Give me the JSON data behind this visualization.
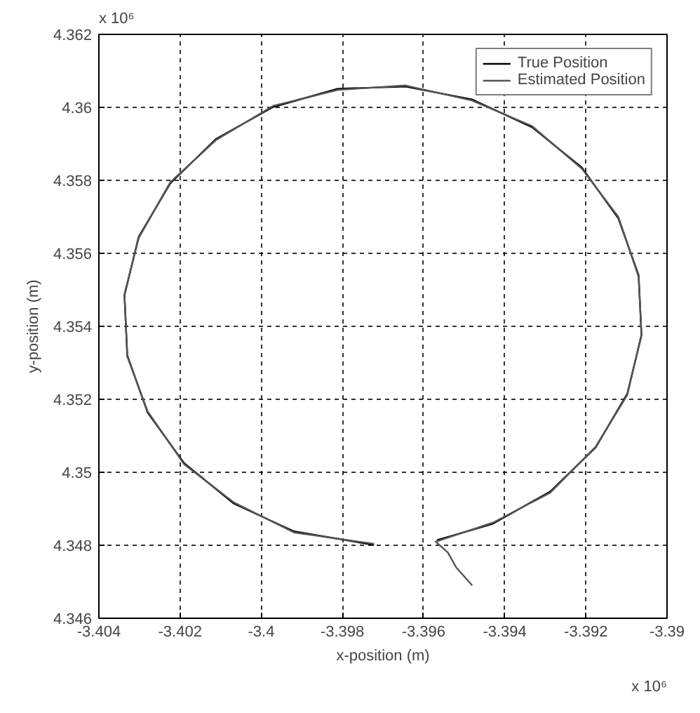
{
  "chart_data": {
    "type": "line",
    "xlabel": "x-position (m)",
    "ylabel": "y-position (m)",
    "annotations": [
      "x 10⁶",
      "x 10⁶"
    ],
    "xlim": [
      -3.404,
      -3.39
    ],
    "ylim": [
      4.346,
      4.362
    ],
    "xticks": [
      -3.404,
      -3.402,
      -3.4,
      -3.398,
      -3.396,
      -3.394,
      -3.392,
      -3.39
    ],
    "yticks": [
      4.346,
      4.348,
      4.35,
      4.352,
      4.354,
      4.356,
      4.358,
      4.36,
      4.362
    ],
    "grid": true,
    "legend": "top right",
    "line_style": "solid",
    "series": [
      {
        "name": "True Position",
        "color": "#000000",
        "x": [
          -3.39567,
          -3.39429,
          -3.39288,
          -3.39176,
          -3.39098,
          -3.39063,
          -3.3907,
          -3.3912,
          -3.3921,
          -3.39333,
          -3.39481,
          -3.39644,
          -3.39811,
          -3.39971,
          -3.40112,
          -3.40224,
          -3.40302,
          -3.40337,
          -3.4033,
          -3.4028,
          -3.4019,
          -3.40067,
          -3.39919,
          -3.39722
        ],
        "values": [
          4.34814,
          4.34859,
          4.34947,
          4.35068,
          4.35215,
          4.35375,
          4.3554,
          4.35696,
          4.35835,
          4.35946,
          4.36022,
          4.36057,
          4.36051,
          4.36001,
          4.35913,
          4.35792,
          4.35645,
          4.35485,
          4.3532,
          4.35164,
          4.35025,
          4.34914,
          4.34838,
          4.34801
        ]
      },
      {
        "name": "Estimated Position",
        "color": "#555555",
        "x": [
          -3.3948,
          -3.3952,
          -3.3954,
          -3.3957,
          -3.39429,
          -3.39288,
          -3.39176,
          -3.39098,
          -3.39063,
          -3.3907,
          -3.3912,
          -3.3921,
          -3.39333,
          -3.39481,
          -3.39644,
          -3.39811,
          -3.39971,
          -3.40112,
          -3.40224,
          -3.40302,
          -3.40337,
          -3.4033,
          -3.4028,
          -3.4019,
          -3.40067,
          -3.39919,
          -3.39722
        ],
        "values": [
          4.3469,
          4.3474,
          4.3478,
          4.3481,
          4.34862,
          4.34944,
          4.3507,
          4.35212,
          4.35378,
          4.35536,
          4.357,
          4.35832,
          4.35949,
          4.36019,
          4.3606,
          4.36048,
          4.36004,
          4.3591,
          4.35795,
          4.35642,
          4.35488,
          4.35317,
          4.35167,
          4.35022,
          4.34917,
          4.34835,
          4.34804
        ]
      }
    ]
  }
}
